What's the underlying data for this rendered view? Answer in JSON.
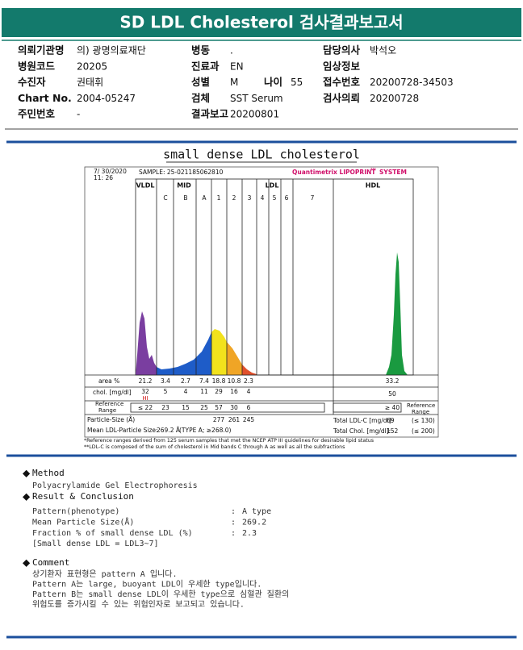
{
  "header": {
    "title": "SD LDL Cholesterol 검사결과보고서"
  },
  "info": [
    [
      {
        "label": "의뢰기관명",
        "value": "의) 광명의료재단"
      },
      {
        "label": "병동",
        "value": "."
      },
      {
        "label": "담당의사",
        "value": "박석오"
      }
    ],
    [
      {
        "label": "병원코드",
        "value": "20205"
      },
      {
        "label": "진료과",
        "value": "EN"
      },
      {
        "label": "임상정보"
      }
    ],
    [
      {
        "label": "수진자",
        "value": "권태휘"
      },
      {
        "label": "성별",
        "value": "M"
      },
      {
        "label": "나이",
        "value": "55"
      },
      {
        "label": "접수번호",
        "value": "20200728-34503"
      }
    ],
    [
      {
        "label": "Chart No.",
        "value": "2004-05247"
      },
      {
        "label": "검체",
        "value": "SST Serum"
      },
      {
        "label": "검사의뢰",
        "value": "20200728"
      }
    ],
    [
      {
        "label": "주민번호",
        "value": "-"
      },
      {
        "label": "결과보고",
        "value": "20200801"
      }
    ]
  ],
  "report": {
    "title": "small dense LDL cholesterol",
    "timestamp": [
      "7/ 30/2020",
      "11: 26"
    ],
    "sample": "SAMPLE:  25-021185062810",
    "system": "Quantimetrix LIPOPRINT",
    "system_sup": "TM",
    "system_tail": "SYSTEM",
    "band_groups": [
      "VLDL",
      "MID",
      "LDL",
      "HDL"
    ],
    "subfractions": [
      "C",
      "B",
      "A",
      "1",
      "2",
      "3",
      "4",
      "5",
      "6",
      "7"
    ],
    "area": {
      "label": "area %",
      "values": [
        21.2,
        3.4,
        2.7,
        7.4,
        18.8,
        10.8,
        2.3
      ],
      "hdl": 33.2
    },
    "chol": {
      "label": "chol. [mg/dl]",
      "values": [
        32,
        5,
        4,
        11,
        29,
        16,
        4
      ],
      "hdl": 50,
      "flag": "HI"
    },
    "reference": {
      "label": [
        "Reference",
        "Range"
      ],
      "values": [
        "≤ 22",
        23,
        15,
        25,
        57,
        30,
        6
      ],
      "hdl": "≥ 40"
    },
    "particle_size": {
      "label": "Particle-Size (Å)",
      "values": [
        277,
        261,
        245
      ]
    },
    "mean_size": {
      "label": "Mean LDL-Particle Size:",
      "value": "269.2 Å",
      "note": "(TYPE A; ≥268.0)"
    },
    "total_ldl": {
      "label": "Total LDL-C [mg/dl]:",
      "value": 69,
      "range": "(≤ 130)"
    },
    "total_chol": {
      "label": "Total Chol. [mg/dl]:",
      "value": 152,
      "range": "(≤ 200)"
    },
    "footnotes": [
      "*Reference ranges derived from 125 serum samples that met the NCEP ATP III guidelines for desirable lipid status",
      "**LDL-C is composed of the sum of cholesterol in Mid bands C through A as well as all the subfractions"
    ]
  },
  "method": {
    "title": "Method",
    "text": "Polyacrylamide Gel Electrophoresis"
  },
  "result": {
    "title": "Result & Conclusion",
    "separator": ":",
    "items": [
      {
        "label": "Pattern(phenotype)",
        "value": "A type"
      },
      {
        "label": "Mean Particle Size(Å)",
        "value": "269.2"
      },
      {
        "label": "Fraction % of small dense LDL (%)",
        "value": "2.3"
      }
    ],
    "note": "[Small dense LDL = LDL3~7]"
  },
  "comment": {
    "title": "Comment",
    "lines": [
      "상기환자 표현형은 pattern A 입니다.",
      "Pattern A는 large, buoyant LDL이 우세한 type입니다.",
      "Pattern B는 small dense LDL이 우세한 type으로 심혈관 질환의",
      "위험도를 증가시킬 수 있는 위험인자로 보고되고 있습니다."
    ]
  }
}
